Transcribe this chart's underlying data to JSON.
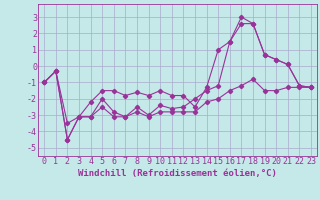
{
  "background_color": "#c5e8e8",
  "grid_color": "#aaaacc",
  "line_color": "#993399",
  "marker_color": "#993399",
  "xlabel": "Windchill (Refroidissement éolien,°C)",
  "xlabel_fontsize": 6.5,
  "tick_fontsize": 6.0,
  "xlim": [
    -0.5,
    23.5
  ],
  "ylim": [
    -5.5,
    3.8
  ],
  "yticks": [
    -5,
    -4,
    -3,
    -2,
    -1,
    0,
    1,
    2,
    3
  ],
  "xticks": [
    0,
    1,
    2,
    3,
    4,
    5,
    6,
    7,
    8,
    9,
    10,
    11,
    12,
    13,
    14,
    15,
    16,
    17,
    18,
    19,
    20,
    21,
    22,
    23
  ],
  "series1_x": [
    0,
    1,
    2,
    3,
    4,
    5,
    6,
    7,
    8,
    9,
    10,
    11,
    12,
    13,
    14,
    15,
    16,
    17,
    18,
    19,
    20,
    21,
    22,
    23
  ],
  "series1_y": [
    -1.0,
    -0.3,
    -4.5,
    -3.1,
    -2.2,
    -1.5,
    -1.5,
    -1.8,
    -1.6,
    -1.8,
    -1.5,
    -1.8,
    -1.8,
    -2.5,
    -1.3,
    1.0,
    1.5,
    3.0,
    2.6,
    0.7,
    0.4,
    0.1,
    -1.2,
    -1.3
  ],
  "series2_x": [
    0,
    1,
    2,
    3,
    4,
    5,
    6,
    7,
    8,
    9,
    10,
    11,
    12,
    13,
    14,
    15,
    16,
    17,
    18,
    19,
    20,
    21,
    22,
    23
  ],
  "series2_y": [
    -1.0,
    -0.3,
    -3.5,
    -3.1,
    -3.1,
    -2.0,
    -2.8,
    -3.1,
    -2.5,
    -3.0,
    -2.4,
    -2.6,
    -2.5,
    -2.0,
    -1.5,
    -1.2,
    1.5,
    2.6,
    2.6,
    0.7,
    0.4,
    0.1,
    -1.2,
    -1.3
  ],
  "series3_x": [
    0,
    1,
    2,
    3,
    4,
    5,
    6,
    7,
    8,
    9,
    10,
    11,
    12,
    13,
    14,
    15,
    16,
    17,
    18,
    19,
    20,
    21,
    22,
    23
  ],
  "series3_y": [
    -1.0,
    -0.3,
    -4.5,
    -3.1,
    -3.1,
    -2.5,
    -3.1,
    -3.1,
    -2.8,
    -3.1,
    -2.8,
    -2.8,
    -2.8,
    -2.8,
    -2.2,
    -2.0,
    -1.5,
    -1.2,
    -0.8,
    -1.5,
    -1.5,
    -1.3,
    -1.3,
    -1.3
  ]
}
